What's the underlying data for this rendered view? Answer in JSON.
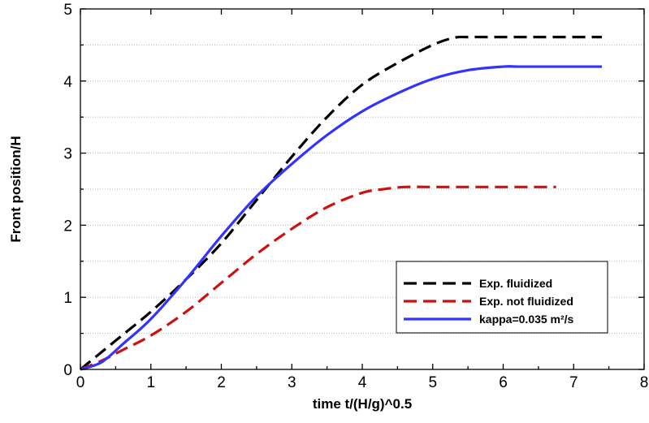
{
  "chart_data": {
    "type": "line",
    "title": "",
    "xlabel": "time t/(H/g)^0.5",
    "ylabel": "Front position/H",
    "xlim": [
      0,
      8
    ],
    "ylim": [
      0,
      5
    ],
    "xticks": [
      "0",
      "1",
      "2",
      "3",
      "4",
      "5",
      "6",
      "7",
      "8"
    ],
    "yticks": [
      "0",
      "1",
      "2",
      "3",
      "4",
      "5"
    ],
    "grid": "horizontal dotted",
    "legend_position": "bottom-right",
    "series": [
      {
        "name": "Exp. fluidized",
        "color": "#000000",
        "style": "dashed",
        "x": [
          0,
          0.5,
          1.0,
          1.5,
          2.0,
          2.5,
          3.0,
          3.5,
          4.0,
          4.5,
          5.0,
          5.3,
          5.5,
          6.0,
          6.5,
          7.0,
          7.4
        ],
        "y": [
          0,
          0.4,
          0.8,
          1.25,
          1.75,
          2.35,
          2.95,
          3.5,
          3.95,
          4.25,
          4.5,
          4.6,
          4.61,
          4.61,
          4.61,
          4.61,
          4.61
        ]
      },
      {
        "name": "Exp. not fluidized",
        "color": "#cc1111",
        "style": "dashed",
        "x": [
          0,
          0.3,
          0.6,
          1.0,
          1.5,
          2.0,
          2.5,
          3.0,
          3.5,
          4.0,
          4.3,
          4.6,
          5.0,
          5.5,
          6.0,
          6.5,
          6.75
        ],
        "y": [
          0,
          0.12,
          0.27,
          0.47,
          0.8,
          1.2,
          1.6,
          1.95,
          2.25,
          2.45,
          2.5,
          2.53,
          2.53,
          2.53,
          2.53,
          2.53,
          2.53
        ]
      },
      {
        "name": "kappa=0.035 m²/s",
        "color": "#3333ff",
        "style": "solid",
        "x": [
          0,
          0.3,
          0.6,
          1.0,
          1.5,
          2.0,
          2.5,
          3.0,
          3.5,
          4.0,
          4.5,
          5.0,
          5.5,
          6.0,
          6.2,
          6.5,
          7.0,
          7.4
        ],
        "y": [
          0,
          0.1,
          0.35,
          0.7,
          1.25,
          1.85,
          2.4,
          2.85,
          3.25,
          3.58,
          3.83,
          4.03,
          4.15,
          4.2,
          4.2,
          4.2,
          4.2,
          4.2
        ]
      }
    ]
  }
}
